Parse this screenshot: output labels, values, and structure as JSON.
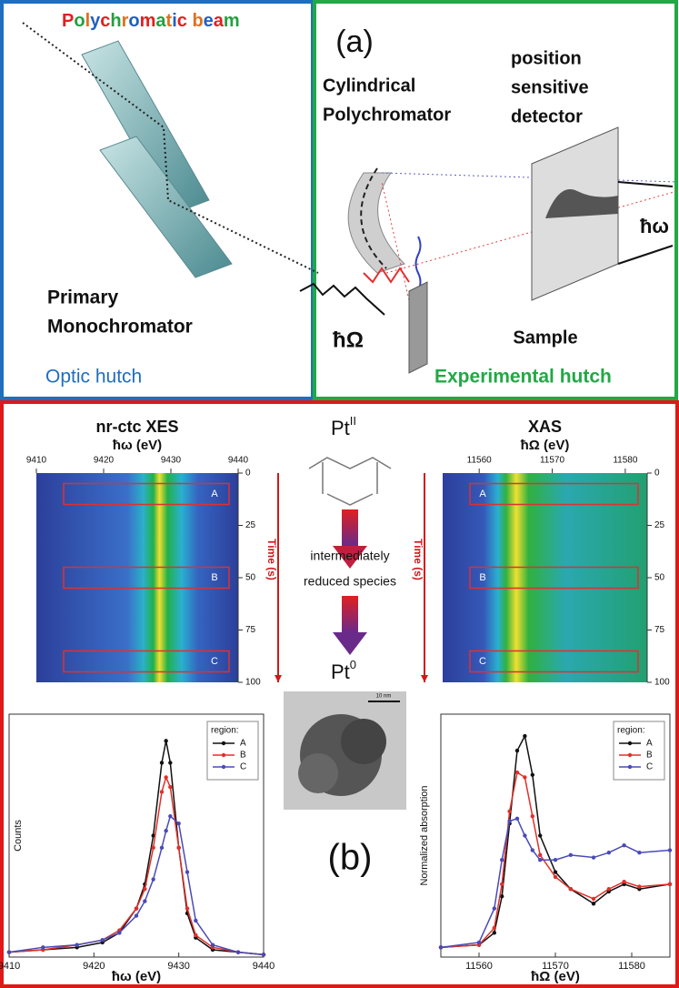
{
  "panel_a": {
    "beam": "Polychromatic beam",
    "label": "(a)",
    "polychromator": [
      "Cylindrical",
      "Polychromator"
    ],
    "detector": [
      "position",
      "sensitive",
      "detector"
    ],
    "emission_energy": "ħω",
    "monochromator": [
      "Primary",
      "Monochromator"
    ],
    "incident_energy": "ħΩ",
    "sample": "Sample",
    "optic_hutch": "Optic hutch",
    "experimental_hutch": "Experimental hutch"
  },
  "panel_b": {
    "label": "(b)",
    "start_species": {
      "symbol": "Pt",
      "charge": "II"
    },
    "intermediate": [
      "intermediately",
      "reduced species"
    ],
    "end_species": {
      "symbol": "Pt",
      "charge": "0"
    },
    "scale_bar": "10 nm"
  },
  "chart_data": [
    {
      "type": "heatmap",
      "title": "nr-ctc XES",
      "xlabel": "ħω (eV)",
      "ylabel": "Time (s)",
      "xlim": [
        9410,
        9440
      ],
      "xticks": [
        9410,
        9420,
        9430,
        9440
      ],
      "ylim": [
        0,
        100
      ],
      "yticks": [
        0,
        25,
        50,
        75,
        100
      ],
      "regions": [
        {
          "label": "A",
          "ylim": [
            5,
            15
          ]
        },
        {
          "label": "B",
          "ylim": [
            45,
            55
          ]
        },
        {
          "label": "C",
          "ylim": [
            85,
            95
          ]
        }
      ]
    },
    {
      "type": "heatmap",
      "title": "XAS",
      "xlabel": "ħΩ (eV)",
      "ylabel": "Time (s)",
      "xlim": [
        11555,
        11583
      ],
      "xticks": [
        11560,
        11570,
        11580
      ],
      "ylim": [
        0,
        100
      ],
      "yticks": [
        0,
        25,
        50,
        75,
        100
      ],
      "regions": [
        {
          "label": "A",
          "ylim": [
            5,
            15
          ]
        },
        {
          "label": "B",
          "ylim": [
            45,
            55
          ]
        },
        {
          "label": "C",
          "ylim": [
            85,
            95
          ]
        }
      ]
    },
    {
      "type": "line",
      "xlabel": "ħω (eV)",
      "ylabel": "Counts",
      "xlim": [
        9410,
        9440
      ],
      "xticks": [
        9410,
        9420,
        9430,
        9440
      ],
      "ylim": [
        0,
        1
      ],
      "legend_title": "region:",
      "legend": "upper right",
      "x": [
        9410,
        9414,
        9418,
        9421,
        9423,
        9425,
        9426,
        9427,
        9428,
        9428.5,
        9429,
        9430,
        9431,
        9432,
        9434,
        9437,
        9440
      ],
      "series": [
        {
          "name": "A",
          "color": "#111111",
          "values": [
            0.02,
            0.03,
            0.04,
            0.06,
            0.1,
            0.2,
            0.3,
            0.5,
            0.8,
            0.89,
            0.8,
            0.45,
            0.18,
            0.08,
            0.03,
            0.02,
            0.01
          ]
        },
        {
          "name": "B",
          "color": "#e0302a",
          "values": [
            0.02,
            0.03,
            0.05,
            0.07,
            0.11,
            0.2,
            0.28,
            0.45,
            0.68,
            0.74,
            0.7,
            0.45,
            0.2,
            0.09,
            0.04,
            0.02,
            0.01
          ]
        },
        {
          "name": "C",
          "color": "#4a4ab8",
          "values": [
            0.02,
            0.04,
            0.05,
            0.07,
            0.1,
            0.17,
            0.23,
            0.32,
            0.45,
            0.52,
            0.58,
            0.55,
            0.35,
            0.15,
            0.05,
            0.02,
            0.01
          ]
        }
      ]
    },
    {
      "type": "line",
      "xlabel": "ħΩ (eV)",
      "ylabel": "Normalized absorption",
      "xlim": [
        11555,
        11585
      ],
      "xticks": [
        11560,
        11570,
        11580
      ],
      "ylim": [
        0,
        1
      ],
      "legend_title": "region:",
      "legend": "upper right",
      "x": [
        11555,
        11560,
        11562,
        11563,
        11564,
        11565,
        11566,
        11567,
        11568,
        11570,
        11572,
        11575,
        11577,
        11579,
        11581,
        11585
      ],
      "series": [
        {
          "name": "A",
          "color": "#111111",
          "values": [
            0.04,
            0.05,
            0.1,
            0.25,
            0.55,
            0.85,
            0.91,
            0.75,
            0.5,
            0.35,
            0.28,
            0.22,
            0.27,
            0.3,
            0.28,
            0.3
          ]
        },
        {
          "name": "B",
          "color": "#e0302a",
          "values": [
            0.04,
            0.05,
            0.12,
            0.3,
            0.6,
            0.76,
            0.74,
            0.58,
            0.42,
            0.33,
            0.28,
            0.24,
            0.28,
            0.31,
            0.29,
            0.3
          ]
        },
        {
          "name": "C",
          "color": "#4a4ab8",
          "values": [
            0.04,
            0.06,
            0.2,
            0.4,
            0.56,
            0.57,
            0.5,
            0.44,
            0.4,
            0.4,
            0.42,
            0.41,
            0.43,
            0.46,
            0.43,
            0.44
          ]
        }
      ]
    }
  ]
}
